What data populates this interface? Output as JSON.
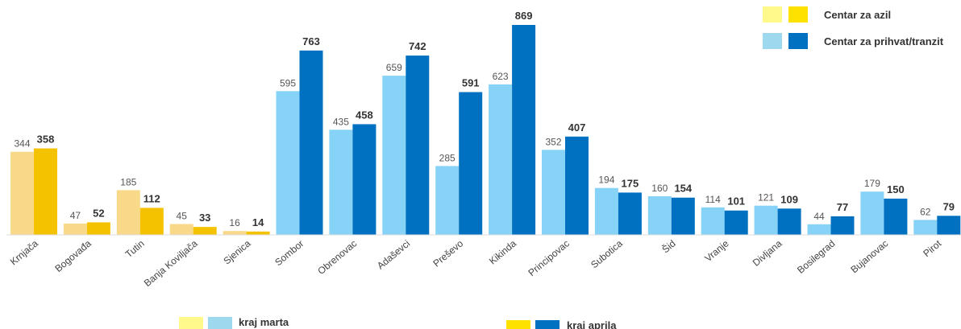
{
  "chart_data": {
    "type": "bar",
    "categories": [
      "Krnjača",
      "Bogovađa",
      "Tutin",
      "Banja Koviljača",
      "Sjenica",
      "Sombor",
      "Obrenovac",
      "Adaševci",
      "Preševo",
      "Kikinda",
      "Principovac",
      "Subotica",
      "Šid",
      "Vranje",
      "Divljana",
      "Bosilegrad",
      "Bujanovac",
      "Pirot"
    ],
    "center_type": [
      "asylum",
      "asylum",
      "asylum",
      "asylum",
      "asylum",
      "transit",
      "transit",
      "transit",
      "transit",
      "transit",
      "transit",
      "transit",
      "transit",
      "transit",
      "transit",
      "transit",
      "transit",
      "transit"
    ],
    "series": [
      {
        "name": "kraj marta",
        "values": [
          344,
          47,
          185,
          45,
          16,
          595,
          435,
          659,
          285,
          623,
          352,
          194,
          160,
          114,
          121,
          44,
          179,
          62
        ]
      },
      {
        "name": "kraj aprila",
        "values": [
          358,
          52,
          112,
          33,
          14,
          763,
          458,
          742,
          591,
          869,
          407,
          175,
          154,
          101,
          109,
          77,
          150,
          79
        ]
      }
    ],
    "ylim": [
      0,
      900
    ],
    "grid": false,
    "legend_top": [
      "Centar za azil",
      "Centar za prihvat/tranzit"
    ],
    "legend_bottom": [
      "kraj marta",
      "kraj aprila"
    ],
    "colors": {
      "asylum_prev": "#F8D98A",
      "asylum_cur": "#F5C200",
      "transit_prev": "#87D3F8",
      "transit_cur": "#0070C0",
      "legend_asylum_prev": "#FFF88A",
      "legend_asylum_cur": "#FFE100",
      "legend_transit_prev": "#9ED8EE",
      "legend_transit_cur": "#0070C0"
    }
  }
}
